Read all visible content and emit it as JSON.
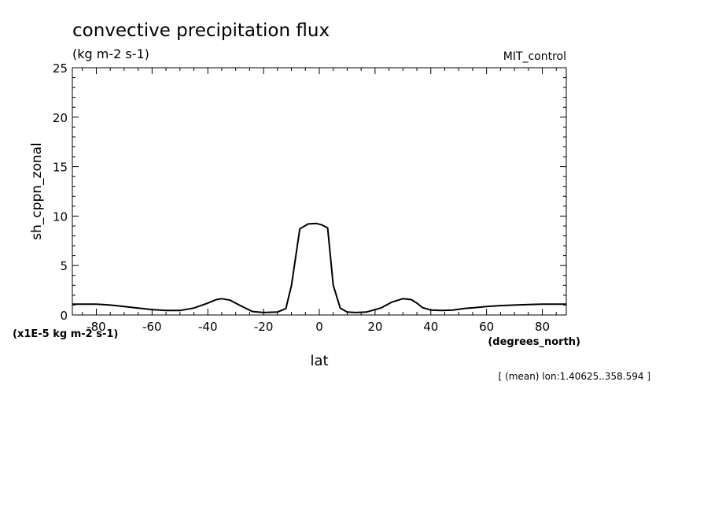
{
  "chart_data": {
    "type": "line",
    "title": "convective precipitation flux",
    "units_label": "(kg m-2 s-1)",
    "run_label": "MIT_control",
    "ylabel": "sh_cppn_zonal",
    "xlabel": "lat",
    "xunits_label": "(degrees_north)",
    "yscale_label": "(x1E-5 kg m-2 s-1)",
    "footnote": "[ (mean) lon:1.40625..358.594 ]",
    "xlim": [
      -88.6,
      88.6
    ],
    "ylim": [
      0,
      25
    ],
    "xticks": [
      -80,
      -60,
      -40,
      -20,
      0,
      20,
      40,
      60,
      80
    ],
    "yticks": [
      0,
      5,
      10,
      15,
      20,
      25
    ],
    "grid": false,
    "series": [
      {
        "x": [
          -88.6,
          -80,
          -75,
          -70,
          -65,
          -60,
          -55,
          -50,
          -45,
          -40,
          -37,
          -35,
          -32,
          -28,
          -24,
          -20,
          -15,
          -12,
          -10,
          -7,
          -4,
          -1,
          1,
          3,
          5,
          7.5,
          10,
          13,
          17,
          22,
          26,
          30,
          33,
          35,
          37,
          40,
          44,
          48,
          52,
          56,
          60,
          65,
          70,
          75,
          80,
          88.6
        ],
        "y": [
          1.1,
          1.1,
          1.0,
          0.85,
          0.7,
          0.55,
          0.45,
          0.45,
          0.7,
          1.2,
          1.55,
          1.65,
          1.5,
          0.9,
          0.35,
          0.25,
          0.3,
          0.65,
          3.0,
          8.7,
          9.2,
          9.25,
          9.1,
          8.8,
          3.0,
          0.7,
          0.3,
          0.25,
          0.3,
          0.7,
          1.3,
          1.65,
          1.55,
          1.2,
          0.75,
          0.5,
          0.45,
          0.5,
          0.65,
          0.75,
          0.85,
          0.95,
          1.0,
          1.05,
          1.1,
          1.1
        ]
      }
    ]
  }
}
